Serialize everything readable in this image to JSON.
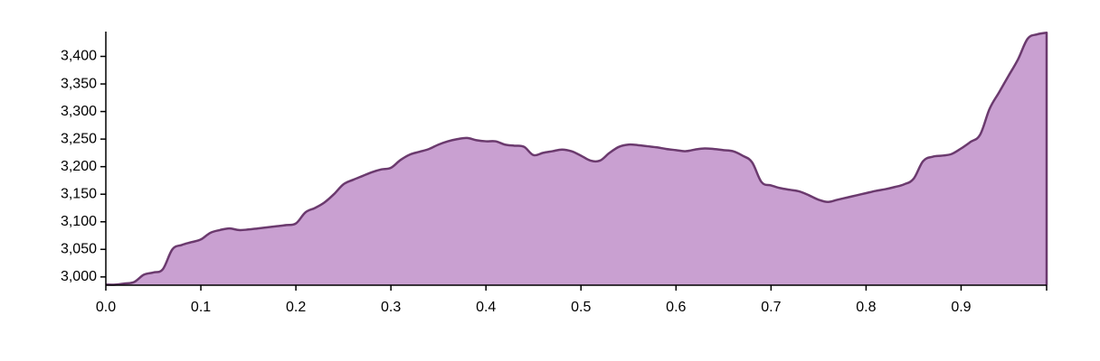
{
  "chart_data": {
    "type": "area",
    "xlim": [
      0,
      0.99
    ],
    "ylim": [
      2985,
      3445
    ],
    "x_ticks": [
      0.0,
      0.1,
      0.2,
      0.3,
      0.4,
      0.5,
      0.6,
      0.7,
      0.8,
      0.9
    ],
    "x_tick_labels": [
      "0.0",
      "0.1",
      "0.2",
      "0.3",
      "0.4",
      "0.5",
      "0.6",
      "0.7",
      "0.8",
      "0.9"
    ],
    "y_ticks": [
      3000,
      3050,
      3100,
      3150,
      3200,
      3250,
      3300,
      3350,
      3400
    ],
    "y_tick_labels": [
      "3,000",
      "3,050",
      "3,100",
      "3,150",
      "3,200",
      "3,250",
      "3,300",
      "3,350",
      "3,400"
    ],
    "grid": false,
    "legend": "none",
    "colors": {
      "fill": "#c9a0d1",
      "stroke": "#6b3a6e"
    },
    "series": [
      {
        "x": [
          0.0,
          0.01,
          0.02,
          0.03,
          0.04,
          0.05,
          0.06,
          0.07,
          0.08,
          0.09,
          0.1,
          0.11,
          0.12,
          0.13,
          0.14,
          0.15,
          0.16,
          0.17,
          0.18,
          0.19,
          0.2,
          0.21,
          0.22,
          0.23,
          0.24,
          0.25,
          0.26,
          0.27,
          0.28,
          0.29,
          0.3,
          0.31,
          0.32,
          0.33,
          0.34,
          0.35,
          0.36,
          0.37,
          0.38,
          0.39,
          0.4,
          0.41,
          0.42,
          0.43,
          0.44,
          0.45,
          0.46,
          0.47,
          0.48,
          0.49,
          0.5,
          0.51,
          0.52,
          0.53,
          0.54,
          0.55,
          0.56,
          0.57,
          0.58,
          0.59,
          0.6,
          0.61,
          0.62,
          0.63,
          0.64,
          0.65,
          0.66,
          0.67,
          0.68,
          0.69,
          0.7,
          0.71,
          0.72,
          0.73,
          0.74,
          0.75,
          0.76,
          0.77,
          0.78,
          0.79,
          0.8,
          0.81,
          0.82,
          0.83,
          0.84,
          0.85,
          0.86,
          0.87,
          0.88,
          0.89,
          0.9,
          0.91,
          0.92,
          0.93,
          0.94,
          0.95,
          0.96,
          0.97,
          0.98,
          0.99
        ],
        "y": [
          2986,
          2986,
          2988,
          2991,
          3004,
          3008,
          3014,
          3050,
          3058,
          3063,
          3068,
          3080,
          3085,
          3088,
          3085,
          3086,
          3088,
          3090,
          3092,
          3094,
          3097,
          3117,
          3125,
          3135,
          3150,
          3168,
          3176,
          3183,
          3190,
          3195,
          3198,
          3212,
          3222,
          3227,
          3232,
          3240,
          3246,
          3250,
          3252,
          3248,
          3246,
          3246,
          3240,
          3238,
          3236,
          3221,
          3225,
          3228,
          3231,
          3228,
          3220,
          3211,
          3211,
          3225,
          3236,
          3240,
          3239,
          3237,
          3235,
          3232,
          3230,
          3228,
          3231,
          3233,
          3232,
          3230,
          3228,
          3220,
          3208,
          3172,
          3166,
          3161,
          3158,
          3155,
          3148,
          3140,
          3136,
          3140,
          3144,
          3148,
          3152,
          3156,
          3159,
          3163,
          3168,
          3178,
          3210,
          3218,
          3220,
          3223,
          3233,
          3245,
          3258,
          3305,
          3335,
          3365,
          3395,
          3432,
          3440,
          3443
        ]
      }
    ]
  }
}
